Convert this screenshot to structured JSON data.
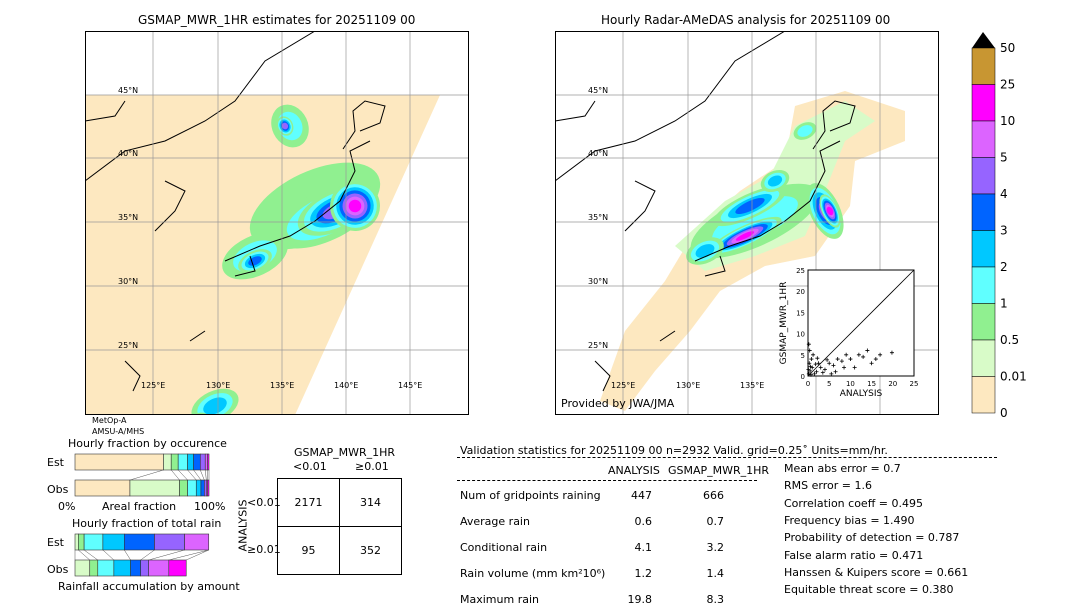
{
  "left_map": {
    "title": "GSMAP_MWR_1HR estimates for 20251109 00",
    "sensor_lines": [
      "MetOp-A",
      "AMSU-A/MHS"
    ]
  },
  "right_map": {
    "title": "Hourly Radar-AMeDAS analysis for 20251109 00",
    "credit": "Provided by JWA/JMA"
  },
  "lat_labels": [
    "45°N",
    "40°N",
    "35°N",
    "30°N",
    "25°N"
  ],
  "lon_labels": [
    "125°E",
    "130°E",
    "135°E",
    "140°E",
    "145°E"
  ],
  "colorbar": {
    "labels": [
      "50",
      "25",
      "10",
      "5",
      "4",
      "3",
      "2",
      "1",
      "0.5",
      "0.01",
      "0"
    ],
    "colors": [
      "#c89632",
      "#ff00ff",
      "#dc64ff",
      "#9664ff",
      "#0064ff",
      "#00c8ff",
      "#60ffff",
      "#90f090",
      "#d8fbc8",
      "#fde8c0"
    ],
    "over_color": "#000000"
  },
  "scatter": {
    "xlabel": "ANALYSIS",
    "ylabel": "GSMAP_MWR_1HR",
    "ticks": [
      "0",
      "5",
      "10",
      "15",
      "20",
      "25"
    ],
    "lim": [
      0,
      25
    ],
    "points": [
      [
        0.2,
        0.5
      ],
      [
        0.5,
        1.2
      ],
      [
        0.3,
        3
      ],
      [
        1,
        2
      ],
      [
        1.5,
        0.5
      ],
      [
        2,
        1
      ],
      [
        0.8,
        4
      ],
      [
        0.4,
        6
      ],
      [
        0.2,
        7.5
      ],
      [
        3,
        2
      ],
      [
        4,
        1.5
      ],
      [
        5,
        3
      ],
      [
        6,
        2.5
      ],
      [
        7,
        4
      ],
      [
        8,
        3.5
      ],
      [
        9,
        5
      ],
      [
        10,
        4
      ],
      [
        12,
        5
      ],
      [
        13,
        4.5
      ],
      [
        14,
        6
      ],
      [
        15,
        3
      ],
      [
        17,
        5
      ],
      [
        19.8,
        5.5
      ],
      [
        2.5,
        3
      ],
      [
        1.2,
        5
      ],
      [
        0.6,
        2.2
      ],
      [
        3.5,
        0.8
      ],
      [
        4.5,
        3.8
      ],
      [
        6.5,
        1
      ],
      [
        11,
        2
      ],
      [
        0.1,
        1.5
      ],
      [
        1.8,
        2.8
      ],
      [
        2.2,
        4.2
      ],
      [
        5.5,
        0.5
      ],
      [
        0.7,
        0.3
      ],
      [
        8.5,
        2
      ],
      [
        16,
        4
      ]
    ]
  },
  "occurrence": {
    "title": "Hourly fraction by occurence",
    "rows": [
      "Est",
      "Obs"
    ],
    "xlabel": "Areal fraction",
    "x0": "0%",
    "x1": "100%",
    "est": [
      0.66,
      0.058,
      0.052,
      0.07,
      0.045,
      0.05,
      0.037,
      0.018,
      0.01
    ],
    "obs": [
      0.41,
      0.37,
      0.06,
      0.065,
      0.035,
      0.025,
      0.015,
      0.01,
      0.01
    ]
  },
  "total_rain": {
    "title": "Hourly fraction of total rain",
    "rows": [
      "Est",
      "Obs"
    ],
    "xlabel": "Rainfall accumulation by amount",
    "est": [
      0,
      0.025,
      0.043,
      0.14,
      0.16,
      0.225,
      0.225,
      0.18,
      0
    ],
    "obs": [
      0,
      0.11,
      0.06,
      0.12,
      0.125,
      0.075,
      0.06,
      0.15,
      0.13
    ]
  },
  "contingency": {
    "title": "GSMAP_MWR_1HR",
    "cols": [
      "<0.01",
      "≥0.01"
    ],
    "row_label": "ANALYSIS",
    "rows": [
      "<0.01",
      "≥0.01"
    ],
    "values": [
      [
        "2171",
        "314"
      ],
      [
        "95",
        "352"
      ]
    ]
  },
  "stats": {
    "header": "Validation statistics for 20251109 00  n=2932 Valid. grid=0.25˚ Units=mm/hr.",
    "cols": [
      "ANALYSIS",
      "GSMAP_MWR_1HR"
    ],
    "rows": [
      [
        "Num of gridpoints raining",
        "447",
        "666"
      ],
      [
        "Average rain",
        "0.6",
        "0.7"
      ],
      [
        "Conditional rain",
        "4.1",
        "3.2"
      ],
      [
        "Rain volume (mm km²10⁶)",
        "1.2",
        "1.4"
      ],
      [
        "Maximum rain",
        "19.8",
        "8.3"
      ]
    ],
    "scores": [
      "Mean abs error =    0.7",
      "RMS error =    1.6",
      "Correlation coeff =  0.495",
      "Frequency bias =  1.490",
      "Probability of detection =  0.787",
      "False alarm ratio =  0.471",
      "Hanssen & Kuipers score =  0.661",
      "Equitable threat score =  0.380"
    ]
  }
}
